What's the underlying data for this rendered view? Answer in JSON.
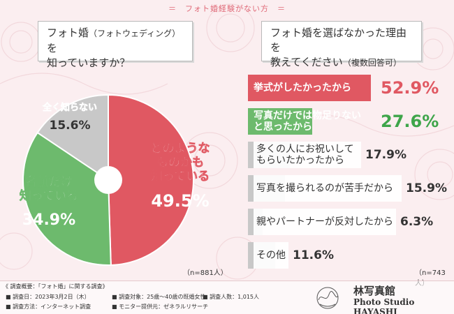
{
  "banner": "＝　フォト婚経験がない方　＝",
  "question1": {
    "line1": "フォト婚",
    "paren": "（フォトウェディング）",
    "line1b": "を",
    "line2": "知っていますか？"
  },
  "question2": {
    "line1": "フォト婚を選ばなかった理由を",
    "line2": "教えてください",
    "paren": "（複数回答可）"
  },
  "n1": "（n=881人）",
  "n2": "（n=743人）",
  "colors": {
    "red": "#e05862",
    "green": "#6dba6d",
    "gray": "#c8c8c8",
    "red_text": "#e05862",
    "green_text": "#3ea54a"
  },
  "chart_data": [
    {
      "type": "pie",
      "slices": [
        {
          "label": "どのようなものかも知っている",
          "label_lines": [
            "どのような",
            "ものかも",
            "知っている"
          ],
          "value": 49.5,
          "value_text": "49.5%"
        },
        {
          "label": "名前だけ知っている",
          "label_lines": [
            "名前だけ",
            "知っている"
          ],
          "value": 34.9,
          "value_text": "34.9%"
        },
        {
          "label": "全く知らない",
          "label_lines": [
            "全く知らない"
          ],
          "value": 15.6,
          "value_text": "15.6%"
        }
      ]
    },
    {
      "type": "bar",
      "orientation": "horizontal",
      "categories": [
        "挙式がしたかったから",
        "写真だけでは物足りないと思ったから",
        "多くの人にお祝いしてもらいたかったから",
        "写真を撮られるのが苦手だから",
        "親やパートナーが反対したから",
        "その他"
      ],
      "category_lines": [
        [
          "挙式がしたかったから"
        ],
        [
          "写真だけでは物足りない",
          "と思ったから"
        ],
        [
          "多くの人にお祝いして",
          "もらいたかったから"
        ],
        [
          "写真を撮られるのが苦手だから"
        ],
        [
          "親やパートナーが反対したから"
        ],
        [
          "その他"
        ]
      ],
      "values": [
        52.9,
        27.6,
        17.9,
        15.9,
        6.3,
        11.6
      ],
      "value_texts": [
        "52.9%",
        "27.6%",
        "17.9%",
        "15.9%",
        "6.3%",
        "11.6%"
      ]
    }
  ],
  "survey": {
    "title": "《 調査概要：「フォト婚」に関する調査》",
    "items": [
      "調査日：2023年3月2日（木）",
      "調査対象：25歳〜40歳の既婚女性",
      "調査人数：1,015人",
      "調査方法：インターネット調査",
      "モニター提供元：ゼネラルリサーチ"
    ]
  },
  "studio": {
    "jp": "林写真館",
    "en": "Photo Studio HAYASHI"
  }
}
